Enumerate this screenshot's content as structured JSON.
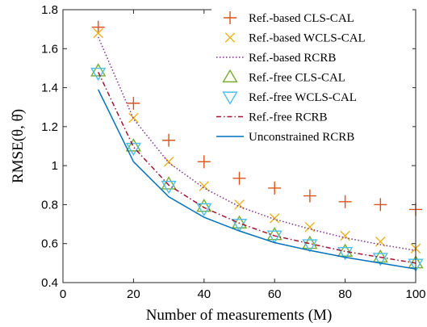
{
  "chart_data": {
    "type": "line",
    "xlabel": "Number of measurements (M)",
    "ylabel": "RMSE(θ, θ̂)",
    "xlim": [
      0,
      100
    ],
    "ylim": [
      0.4,
      1.8
    ],
    "xticks": [
      0,
      20,
      40,
      60,
      80,
      100
    ],
    "yticks": [
      0.4,
      0.6,
      0.8,
      1,
      1.2,
      1.4,
      1.6,
      1.8
    ],
    "xtick_labels": [
      "0",
      "20",
      "40",
      "60",
      "80",
      "100"
    ],
    "ytick_labels": [
      "0.4",
      "0.6",
      "0.8",
      "1",
      "1.2",
      "1.4",
      "1.6",
      "1.8"
    ],
    "grid": false,
    "legend_position": "top-right",
    "x": [
      10,
      20,
      30,
      40,
      50,
      60,
      70,
      80,
      90,
      100
    ],
    "series": [
      {
        "name": "Ref.-based CLS-CAL",
        "style": "marker",
        "marker": "plus",
        "color": "#d95319",
        "values": [
          1.71,
          1.32,
          1.13,
          1.02,
          0.935,
          0.885,
          0.845,
          0.815,
          0.8,
          0.775
        ]
      },
      {
        "name": "Ref.-based WCLS-CAL",
        "style": "marker",
        "marker": "x",
        "color": "#edb120",
        "values": [
          1.68,
          1.245,
          1.02,
          0.895,
          0.8,
          0.73,
          0.685,
          0.64,
          0.61,
          0.575
        ]
      },
      {
        "name": "Ref.-based RCRB",
        "style": "line",
        "dash": "dotted",
        "color": "#7e2f8e",
        "values": [
          1.66,
          1.24,
          1.015,
          0.885,
          0.79,
          0.725,
          0.675,
          0.63,
          0.595,
          0.565
        ]
      },
      {
        "name": "Ref.-free CLS-CAL",
        "style": "marker",
        "marker": "triangle-up",
        "color": "#77ac30",
        "values": [
          1.485,
          1.1,
          0.905,
          0.79,
          0.705,
          0.645,
          0.6,
          0.56,
          0.53,
          0.5
        ]
      },
      {
        "name": "Ref.-free WCLS-CAL",
        "style": "marker",
        "marker": "triangle-down",
        "color": "#4dbeee",
        "values": [
          1.475,
          1.09,
          0.895,
          0.78,
          0.7,
          0.64,
          0.595,
          0.555,
          0.525,
          0.495
        ]
      },
      {
        "name": "Ref.-free RCRB",
        "style": "line",
        "dash": "dashdot",
        "color": "#a2142f",
        "values": [
          1.48,
          1.095,
          0.9,
          0.785,
          0.705,
          0.64,
          0.6,
          0.56,
          0.53,
          0.5
        ]
      },
      {
        "name": "Unconstrained RCRB",
        "style": "line",
        "dash": "solid",
        "color": "#0072bd",
        "values": [
          1.39,
          1.02,
          0.84,
          0.735,
          0.665,
          0.605,
          0.565,
          0.53,
          0.5,
          0.47
        ]
      }
    ]
  }
}
